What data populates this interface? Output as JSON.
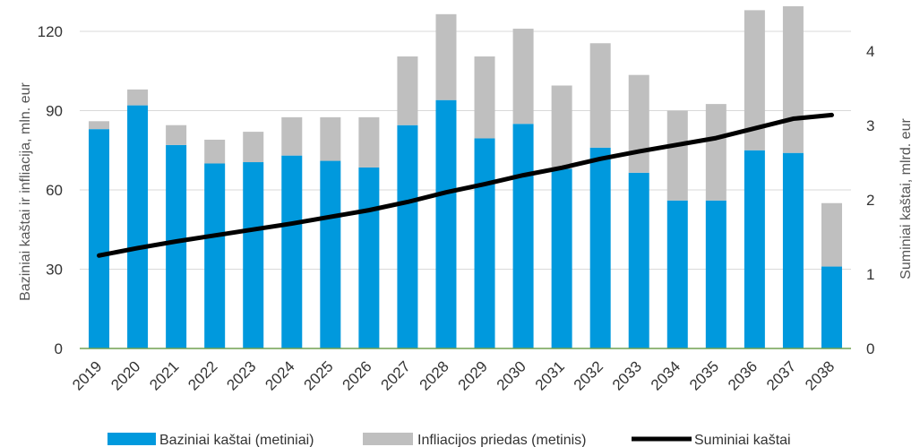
{
  "chart_data": {
    "type": "bar",
    "stacked": true,
    "categories": [
      "2019",
      "2020",
      "2021",
      "2022",
      "2023",
      "2024",
      "2025",
      "2026",
      "2027",
      "2028",
      "2029",
      "2030",
      "2031",
      "2032",
      "2033",
      "2034",
      "2035",
      "2036",
      "2037",
      "2038"
    ],
    "series": [
      {
        "name": "Baziniai kaštai (metiniai)",
        "type": "bar",
        "axis": "left",
        "color": "#0099dd",
        "values": [
          83,
          92,
          77,
          70,
          70.5,
          73,
          71,
          68.5,
          84.5,
          94,
          79.5,
          85,
          68,
          76,
          66.5,
          56,
          56,
          75,
          74,
          31
        ]
      },
      {
        "name": "Infliacijos priedas (metinis)",
        "type": "bar",
        "axis": "left",
        "color": "#bfbfbf",
        "values": [
          3,
          6,
          7.5,
          9,
          11.5,
          14.5,
          16.5,
          19,
          26,
          32.5,
          31,
          36,
          31.5,
          39.5,
          37,
          34,
          36.5,
          53,
          55.5,
          24
        ]
      },
      {
        "name": "Suminiai kaštai",
        "type": "line",
        "axis": "right",
        "color": "#000000",
        "values": [
          1.25,
          1.35,
          1.44,
          1.52,
          1.6,
          1.68,
          1.77,
          1.86,
          1.97,
          2.1,
          2.21,
          2.33,
          2.43,
          2.55,
          2.65,
          2.74,
          2.83,
          2.96,
          3.09,
          3.14
        ]
      }
    ],
    "y_left": {
      "label": "Baziniai kaštai ir infliacija, mln. eur",
      "min": 0,
      "max": 130,
      "ticks": [
        "0",
        "30",
        "60",
        "90",
        "120"
      ]
    },
    "y_right": {
      "label": "Suminiai kaštai, mlrd. eur",
      "min": 0,
      "max": 4.5,
      "ticks": [
        "0",
        "1",
        "2",
        "3",
        "4"
      ]
    },
    "legend_position": "bottom",
    "grid": true,
    "colors": {
      "grid": "#d9d9d9",
      "baseline": "#70a050"
    }
  }
}
